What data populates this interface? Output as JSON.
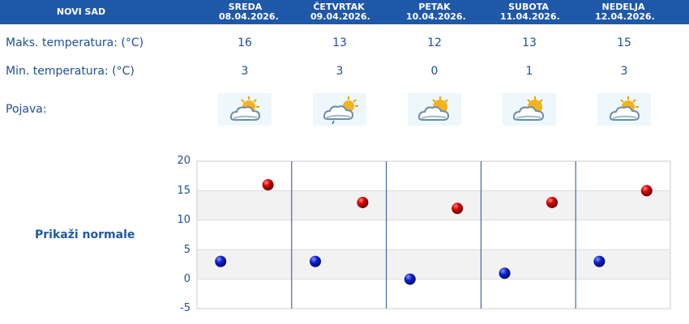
{
  "city": "NOVI SAD",
  "days": [
    {
      "name": "SREDA",
      "date": "08.04.2026.",
      "max": 16,
      "min": 3,
      "icon": "partly-cloudy-sun-icon"
    },
    {
      "name": "ČETVRTAK",
      "date": "09.04.2026.",
      "max": 13,
      "min": 3,
      "icon": "partly-cloudy-light-rain-icon"
    },
    {
      "name": "PETAK",
      "date": "10.04.2026.",
      "max": 12,
      "min": 0,
      "icon": "partly-cloudy-sun-icon"
    },
    {
      "name": "SUBOTA",
      "date": "11.04.2026.",
      "max": 13,
      "min": 1,
      "icon": "partly-cloudy-sun-icon"
    },
    {
      "name": "NEDELJA",
      "date": "12.04.2026.",
      "max": 15,
      "min": 3,
      "icon": "partly-cloudy-sun-icon"
    }
  ],
  "labels": {
    "max_temp": "Maks. temperatura: (°C)",
    "min_temp": "Min. temperatura: (°C)",
    "phenomenon": "Pojava:",
    "show_normals": "Prikaži normale"
  },
  "colors": {
    "header_bg": "#1f58a8",
    "text": "#1f4f96",
    "max_marker": "#c40000",
    "min_marker": "#0a1fbf"
  },
  "chart_data": {
    "type": "scatter",
    "categories": [
      "SREDA",
      "ČETVRTAK",
      "PETAK",
      "SUBOTA",
      "NEDELJA"
    ],
    "series": [
      {
        "values": [
          16,
          13,
          12,
          13,
          15
        ]
      },
      {
        "values": [
          3,
          3,
          0,
          1,
          3
        ]
      }
    ],
    "yticks": [
      20,
      15,
      10,
      5,
      0,
      -5
    ],
    "ylim": [
      -5,
      20
    ],
    "grid": true
  }
}
